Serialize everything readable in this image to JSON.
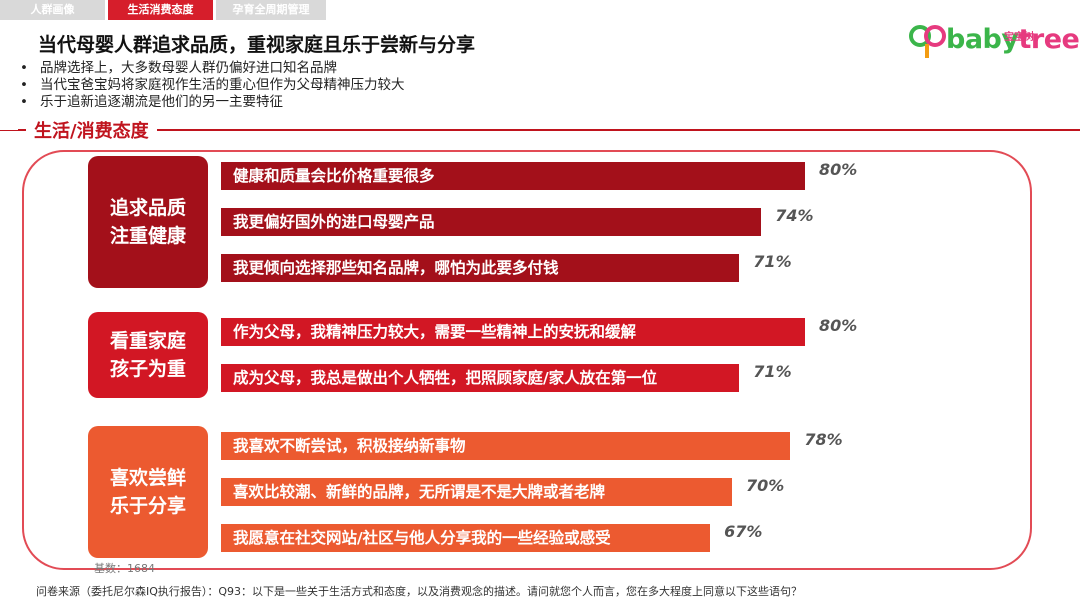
{
  "tabs": [
    "人群画像",
    "生活消费态度",
    "孕育全周期管理洞察"
  ],
  "logo": {
    "text_baby": "baby",
    "text_tree": "tree",
    "subtitle": "宝宝树"
  },
  "title": "当代母婴人群追求品质，重视家庭且乐于尝新与分享",
  "bullets": [
    "品牌选择上，大多数母婴人群仍偏好进口知名品牌",
    "当代宝爸宝妈将家庭视作生活的重心但作为父母精神压力较大",
    "乐于追新追逐潮流是他们的另一主要特征"
  ],
  "section": {
    "label": "生活/消费态度"
  },
  "colors": {
    "dark_red": "#a3101a",
    "red": "#d21724",
    "orange": "#ec5a30",
    "accent": "#c0141e"
  },
  "chart_data": {
    "type": "bar",
    "orientation": "horizontal",
    "unit": "%",
    "xlim": [
      0,
      100
    ],
    "groups": [
      {
        "name": "追求品质\n注重健康",
        "color": "#a3101a",
        "items": [
          {
            "label": "健康和质量会比价格重要很多",
            "value": 80,
            "value_label": "80%"
          },
          {
            "label": "我更偏好国外的进口母婴产品",
            "value": 74,
            "value_label": "74%"
          },
          {
            "label": "我更倾向选择那些知名品牌，哪怕为此要多付钱",
            "value": 71,
            "value_label": "71%"
          }
        ]
      },
      {
        "name": "看重家庭\n孩子为重",
        "color": "#d21724",
        "items": [
          {
            "label": "作为父母，我精神压力较大，需要一些精神上的安抚和缓解",
            "value": 80,
            "value_label": "80%"
          },
          {
            "label": "成为父母，我总是做出个人牺牲，把照顾家庭/家人放在第一位",
            "value": 71,
            "value_label": "71%"
          }
        ]
      },
      {
        "name": "喜欢尝鲜\n乐于分享",
        "color": "#ec5a30",
        "items": [
          {
            "label": "我喜欢不断尝试，积极接纳新事物",
            "value": 78,
            "value_label": "78%"
          },
          {
            "label": "喜欢比较潮、新鲜的品牌，无所谓是不是大牌或者老牌",
            "value": 70,
            "value_label": "70%"
          },
          {
            "label": "我愿意在社交网站/社区与他人分享我的一些经验或感受",
            "value": 67,
            "value_label": "67%"
          }
        ]
      }
    ]
  },
  "footer": {
    "base": "基数：1684",
    "source": "问卷来源（委托尼尔森IQ执行报告）：Q93：以下是一些关于生活方式和态度，以及消费观念的描述。请问就您个人而言，您在多大程度上同意以下这些语句？"
  }
}
